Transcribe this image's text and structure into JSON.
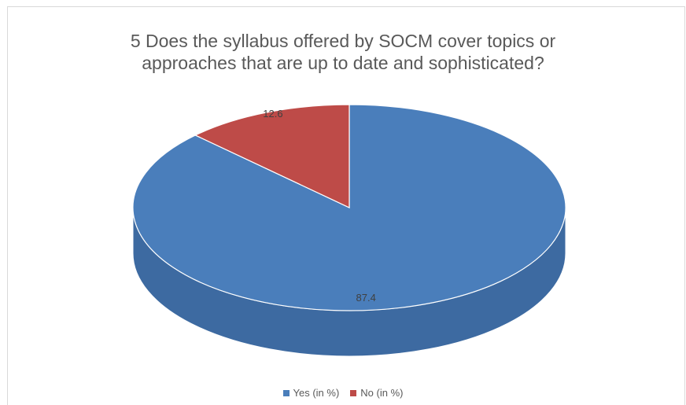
{
  "chart_data": {
    "type": "pie",
    "title_lines": [
      "5 Does the syllabus offered by SOCM cover topics or",
      "approaches that are up to date and sophisticated?"
    ],
    "categories": [
      "Yes (in %)",
      "No (in %)"
    ],
    "values": [
      87.4,
      12.6
    ],
    "data_labels": [
      "87.4",
      "12.6"
    ],
    "colors": [
      "#4a7ebb",
      "#be4b48"
    ],
    "side_colors": [
      "#3d6aa1",
      "#a03f3c"
    ],
    "legend_position": "bottom",
    "style": "3d"
  }
}
